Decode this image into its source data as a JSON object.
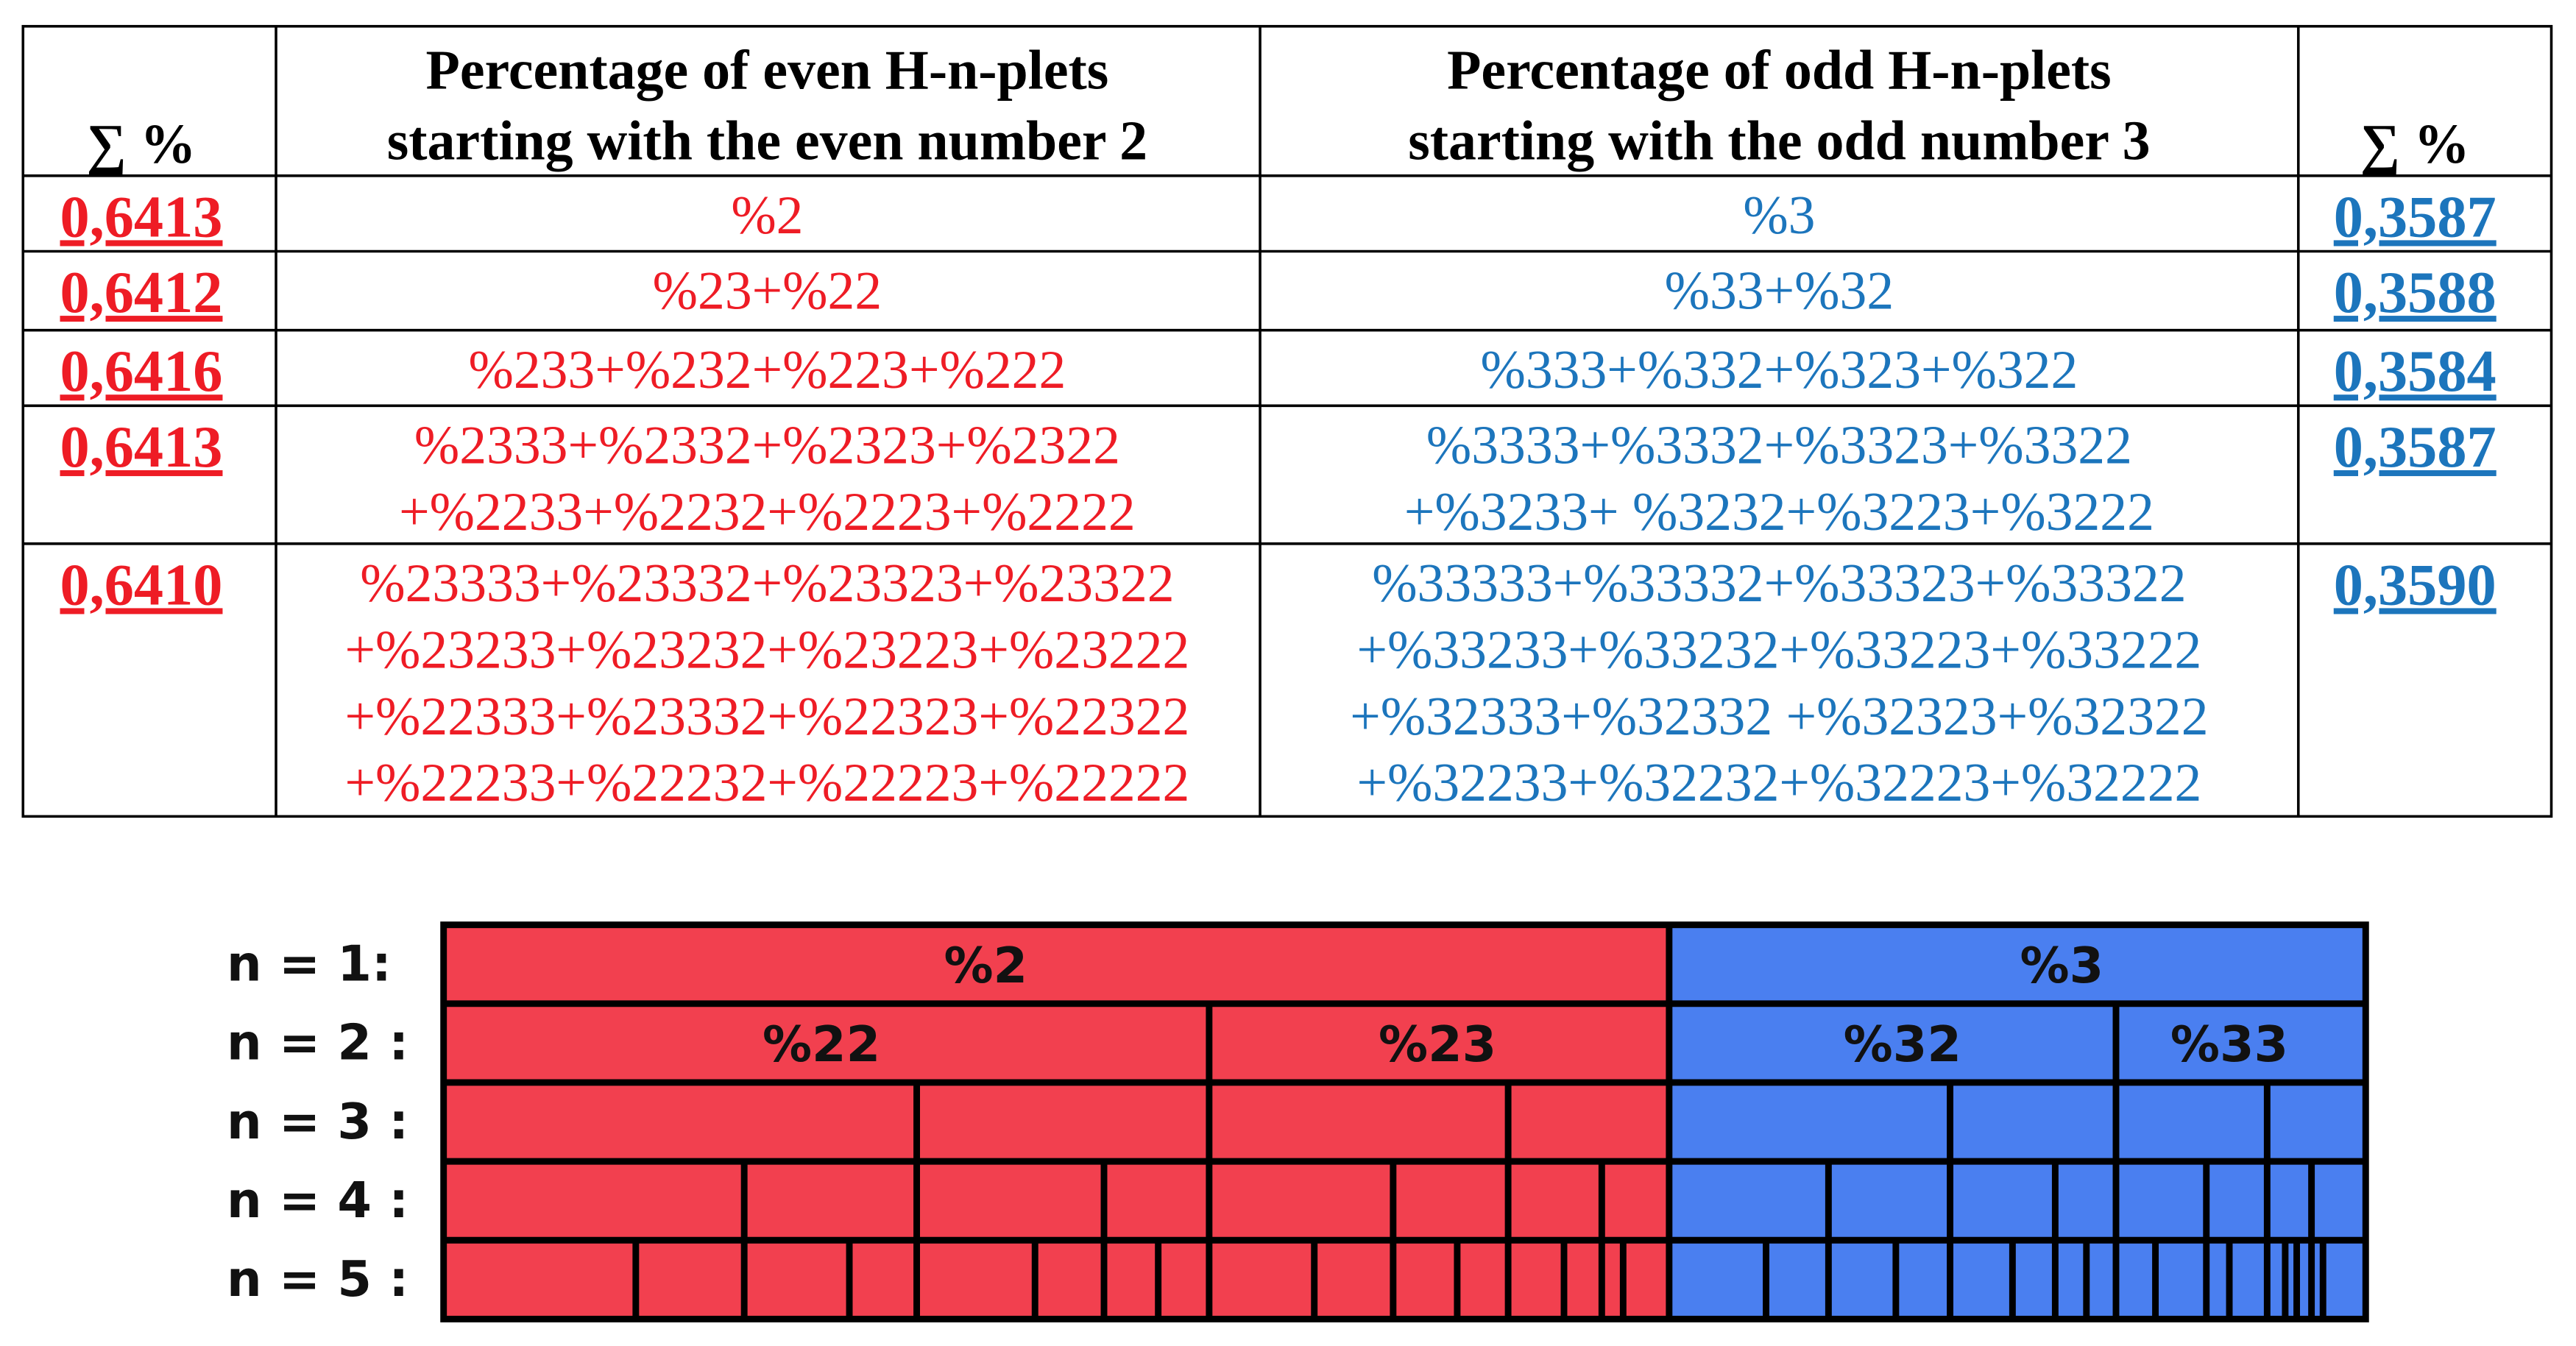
{
  "table": {
    "header": {
      "left_sum": "∑ %",
      "even": [
        "Percentage of even H-n-plets",
        "starting with the even number 2"
      ],
      "odd": [
        "Percentage of odd H-n-plets",
        "starting with the odd number 3"
      ],
      "right_sum": "∑ %"
    },
    "rows": [
      {
        "even_sum": "0,6413",
        "even": [
          "%2"
        ],
        "odd": [
          "%3"
        ],
        "odd_sum": "0,3587"
      },
      {
        "even_sum": "0,6412",
        "even": [
          "%23+%22"
        ],
        "odd": [
          "%33+%32"
        ],
        "odd_sum": "0,3588"
      },
      {
        "even_sum": "0,6416",
        "even": [
          "%233+%232+%223+%222"
        ],
        "odd": [
          "%333+%332+%323+%322"
        ],
        "odd_sum": "0,3584"
      },
      {
        "even_sum": "0,6413",
        "even": [
          "%2333+%2332+%2323+%2322",
          "+%2233+%2232+%2223+%2222"
        ],
        "odd": [
          "%3333+%3332+%3323+%3322",
          "+%3233+ %3232+%3223+%3222"
        ],
        "odd_sum": "0,3587"
      },
      {
        "even_sum": "0,6410",
        "even": [
          "%23333+%23332+%23323+%23322",
          "+%23233+%23232+%23223+%23222",
          "+%22333+%23332+%22323+%22322",
          "+%22233+%22232+%22223+%22222"
        ],
        "odd": [
          "%33333+%33332+%33323+%33322",
          "+%33233+%33232+%33223+%33222",
          "+%32333+%32332 +%32323+%32322",
          "+%32233+%32232+%32223+%32222"
        ],
        "odd_sum": "0,3590"
      }
    ]
  },
  "diagram": {
    "row_labels": [
      "n = 1:",
      "n = 2 :",
      "n = 3 :",
      "n = 4 :",
      "n = 5 :"
    ],
    "level1": [
      "%2",
      "%3"
    ],
    "level2": [
      "%22",
      "%23",
      "%32",
      "%33"
    ]
  }
}
